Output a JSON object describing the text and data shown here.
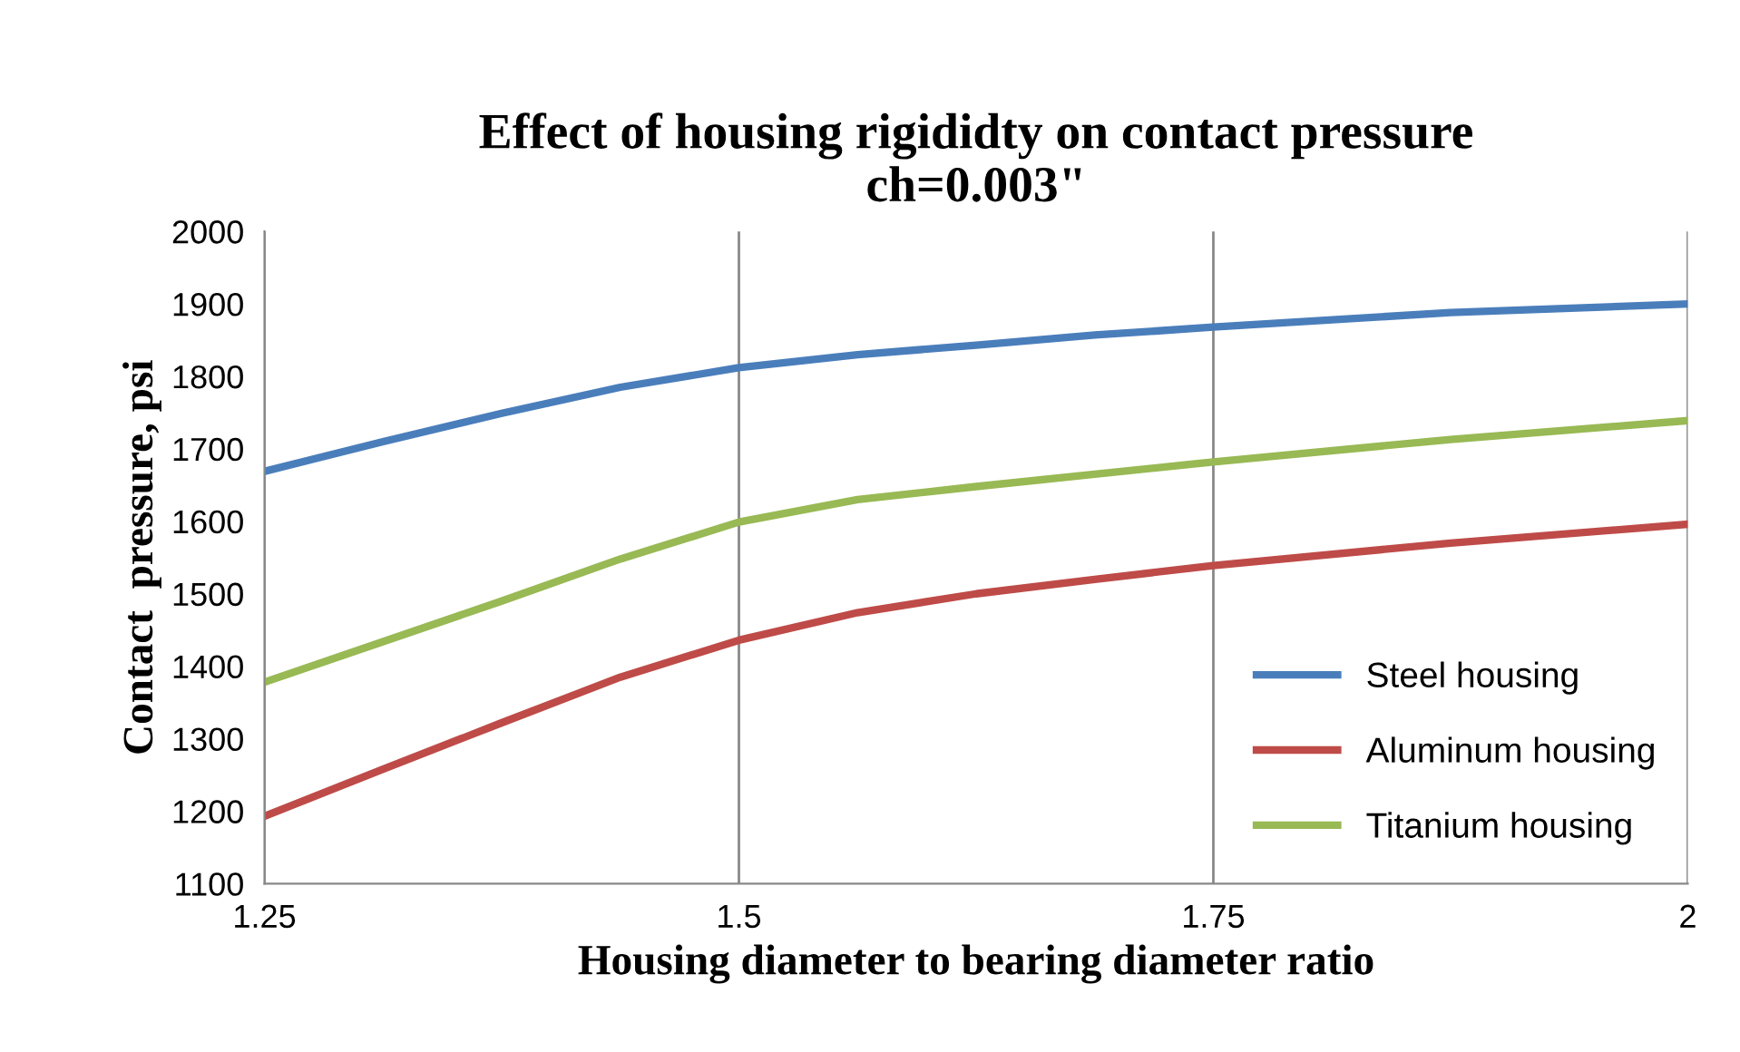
{
  "chart_data": {
    "type": "line",
    "title": "Effect of housing rigididty on contact pressure\nch=0.003\"",
    "xlabel": "Housing diameter to bearing diameter ratio",
    "ylabel": "Contact  pressure, psi",
    "x": [
      1.25,
      1.3125,
      1.375,
      1.4375,
      1.5,
      1.5625,
      1.625,
      1.6875,
      1.75,
      1.875,
      2
    ],
    "series": [
      {
        "name": "Steel housing",
        "color": "#4a7ebb",
        "values": [
          1669,
          1710,
          1749,
          1785,
          1812,
          1830,
          1843,
          1857,
          1868,
          1888,
          1900
        ]
      },
      {
        "name": "Aluminum housing",
        "color": "#be4b48",
        "values": [
          1193,
          1258,
          1322,
          1385,
          1436,
          1474,
          1500,
          1520,
          1539,
          1570,
          1596
        ]
      },
      {
        "name": "Titanium housing",
        "color": "#98b954",
        "values": [
          1378,
          1434,
          1490,
          1548,
          1599,
          1630,
          1648,
          1665,
          1682,
          1713,
          1739
        ]
      }
    ],
    "xlim": [
      1.25,
      2
    ],
    "xticks": [
      1.25,
      1.5,
      1.75,
      2
    ],
    "ylim": [
      1100,
      2000
    ],
    "yticks": [
      1100,
      1200,
      1300,
      1400,
      1500,
      1600,
      1700,
      1800,
      1900,
      2000
    ],
    "grid": "x",
    "legend": "right",
    "marker": "none",
    "line_style": "solid"
  }
}
